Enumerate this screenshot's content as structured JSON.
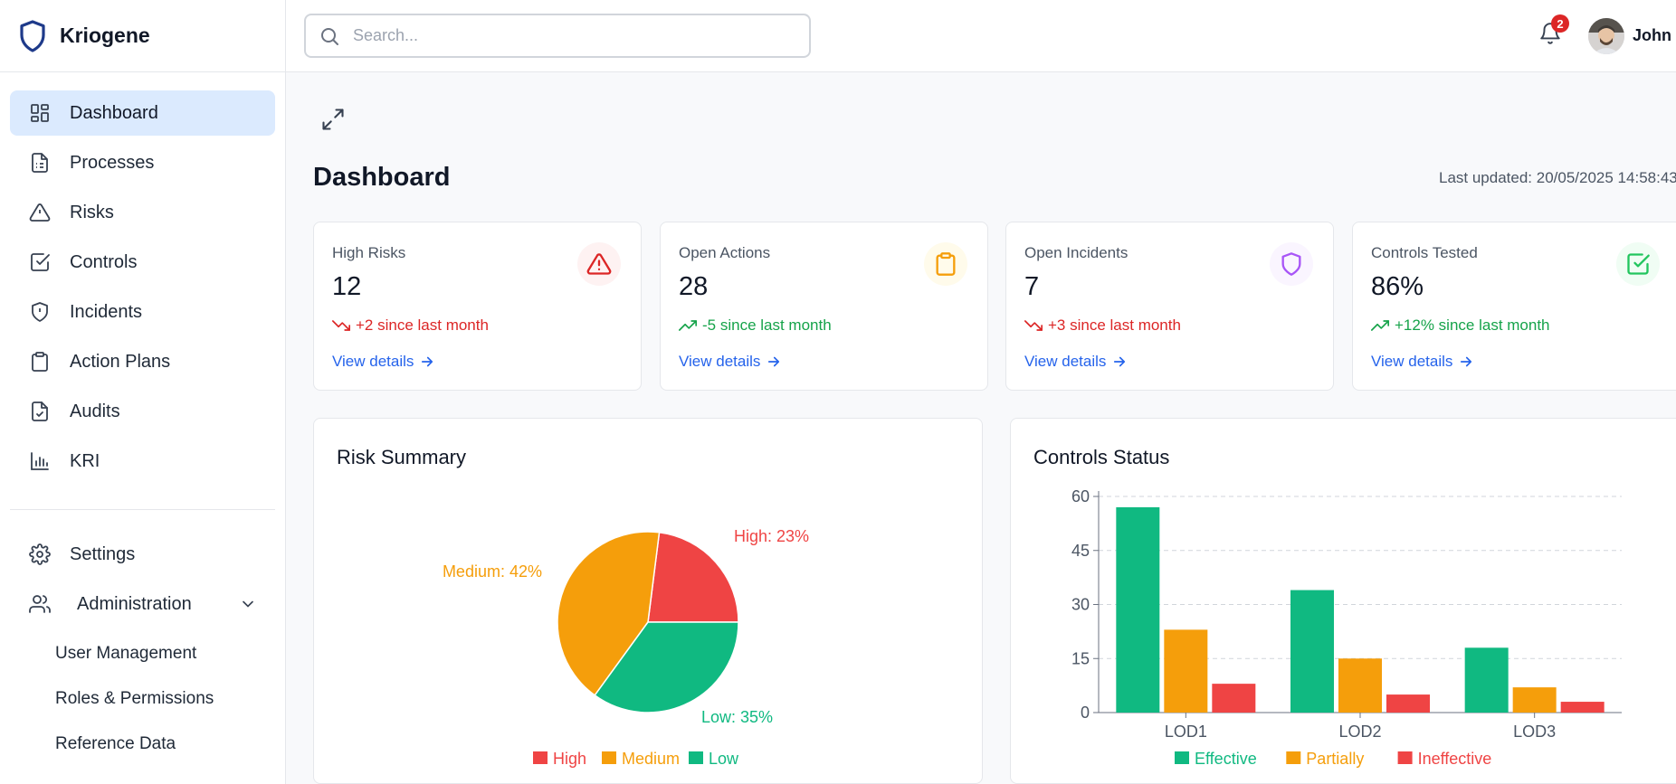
{
  "brand": {
    "name": "Kriogene"
  },
  "sidebar": {
    "items": [
      {
        "label": "Dashboard",
        "icon": "dashboard-icon",
        "active": true
      },
      {
        "label": "Processes",
        "icon": "file-list-icon"
      },
      {
        "label": "Risks",
        "icon": "warning-icon"
      },
      {
        "label": "Controls",
        "icon": "check-square-icon"
      },
      {
        "label": "Incidents",
        "icon": "shield-alert-icon"
      },
      {
        "label": "Action Plans",
        "icon": "clipboard-icon"
      },
      {
        "label": "Audits",
        "icon": "file-check-icon"
      },
      {
        "label": "KRI",
        "icon": "bar-chart-icon"
      }
    ],
    "settings": "Settings",
    "administration": "Administration",
    "admin_items": [
      "User Management",
      "Roles & Permissions",
      "Reference Data"
    ]
  },
  "topbar": {
    "search_placeholder": "Search...",
    "notification_count": "2",
    "user_name": "John D"
  },
  "page": {
    "title": "Dashboard",
    "last_updated": "Last updated: 20/05/2025 14:58:43"
  },
  "cards": [
    {
      "title": "High Risks",
      "value": "12",
      "trend": "+2 since last month",
      "trend_dir": "down",
      "trend_color": "#dc2626",
      "link": "View details",
      "icon": "warning-icon",
      "icon_color": "#dc2626",
      "icon_bg": "#fef2f2"
    },
    {
      "title": "Open Actions",
      "value": "28",
      "trend": "-5 since last month",
      "trend_dir": "up",
      "trend_color": "#16a34a",
      "link": "View details",
      "icon": "clipboard-icon",
      "icon_color": "#f59e0b",
      "icon_bg": "#fffbeb"
    },
    {
      "title": "Open Incidents",
      "value": "7",
      "trend": "+3 since last month",
      "trend_dir": "down",
      "trend_color": "#dc2626",
      "link": "View details",
      "icon": "shield-icon",
      "icon_color": "#a855f7",
      "icon_bg": "#faf5ff"
    },
    {
      "title": "Controls Tested",
      "value": "86%",
      "trend": "+12% since last month",
      "trend_dir": "up",
      "trend_color": "#16a34a",
      "link": "View details",
      "icon": "check-square-icon",
      "icon_color": "#22c55e",
      "icon_bg": "#f0fdf4"
    }
  ],
  "panels": {
    "risk_summary_title": "Risk Summary",
    "controls_status_title": "Controls Status"
  },
  "chart_data": [
    {
      "type": "pie",
      "title": "Risk Summary",
      "categories": [
        "High",
        "Medium",
        "Low"
      ],
      "values": [
        23,
        42,
        35
      ],
      "labels": [
        "High: 23%",
        "Medium: 42%",
        "Low: 35%"
      ],
      "colors": [
        "#ef4444",
        "#f59e0b",
        "#10b981"
      ],
      "legend": "bottom"
    },
    {
      "type": "bar",
      "title": "Controls Status",
      "categories": [
        "LOD1",
        "LOD2",
        "LOD3"
      ],
      "series": [
        {
          "name": "Effective",
          "values": [
            57,
            34,
            18
          ],
          "color": "#10b981"
        },
        {
          "name": "Partially",
          "values": [
            23,
            15,
            7
          ],
          "color": "#f59e0b"
        },
        {
          "name": "Ineffective",
          "values": [
            8,
            5,
            3
          ],
          "color": "#ef4444"
        }
      ],
      "ylim": [
        0,
        60
      ],
      "yticks": [
        0,
        15,
        30,
        45,
        60
      ],
      "grid": true,
      "legend": "bottom"
    }
  ]
}
